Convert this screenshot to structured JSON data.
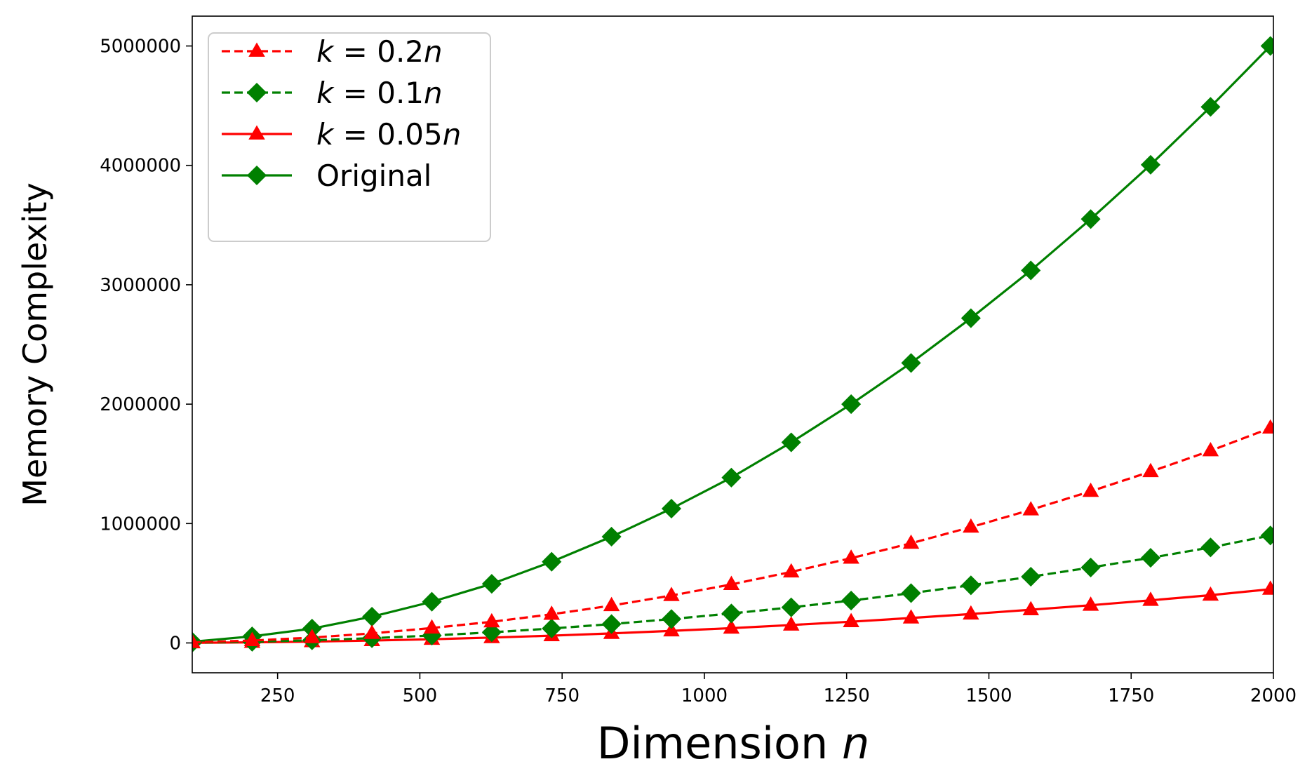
{
  "chart_data": {
    "type": "line",
    "title": "",
    "xlabel_text": "Dimension ",
    "xlabel_var": "n",
    "ylabel": "Memory Complexity",
    "xlim": [
      100,
      2000
    ],
    "ylim": [
      -250000,
      5250000
    ],
    "x_ticks": [
      250,
      500,
      750,
      1000,
      1250,
      1500,
      1750,
      2000
    ],
    "y_ticks": [
      0,
      1000000,
      2000000,
      3000000,
      4000000,
      5000000
    ],
    "x_tick_labels": [
      "250",
      "500",
      "750",
      "1000",
      "1250",
      "1500",
      "1750",
      "2000"
    ],
    "y_tick_labels": [
      "0",
      "1000000",
      "2000000",
      "3000000",
      "4000000",
      "5000000"
    ],
    "legend_position": "upper-left",
    "x": [
      100,
      205.3,
      310.5,
      415.8,
      521.1,
      626.3,
      731.6,
      836.8,
      942.1,
      1047.4,
      1152.6,
      1257.9,
      1363.2,
      1468.4,
      1573.7,
      1678.9,
      1784.2,
      1889.5,
      1994.7
    ],
    "series": [
      {
        "name": "k = 0.2n",
        "label_italic_k": "k",
        "label_mid": " = 0.2",
        "label_italic_n": "n",
        "color": "#ff0000",
        "dash": "dashed",
        "marker": "triangle",
        "values": [
          4500,
          20000,
          45000,
          80000,
          125000,
          177000,
          240000,
          313000,
          397000,
          490000,
          595000,
          710000,
          835000,
          970000,
          1115000,
          1270000,
          1435000,
          1610000,
          1800000
        ]
      },
      {
        "name": "k = 0.1n",
        "label_italic_k": "k",
        "label_mid": " = 0.1",
        "label_italic_n": "n",
        "color": "#008000",
        "dash": "dashed",
        "marker": "diamond",
        "values": [
          2000,
          10000,
          22000,
          40000,
          62000,
          89000,
          121000,
          158000,
          200000,
          247000,
          298000,
          355000,
          417000,
          483000,
          555000,
          632000,
          713000,
          800000,
          900000
        ]
      },
      {
        "name": "k = 0.05n",
        "label_italic_k": "k",
        "label_mid": " = 0.05",
        "label_italic_n": "n",
        "color": "#ff0000",
        "dash": "solid",
        "marker": "triangle",
        "values": [
          1000,
          5000,
          11000,
          20000,
          31000,
          45000,
          61000,
          80000,
          101000,
          124000,
          150000,
          178000,
          209000,
          242000,
          278000,
          316000,
          357000,
          400000,
          450000
        ]
      },
      {
        "name": "Original",
        "label_italic_k": "",
        "label_mid": "Original",
        "label_italic_n": "",
        "color": "#008000",
        "dash": "solid",
        "marker": "diamond",
        "values": [
          10000,
          55000,
          120000,
          220000,
          345000,
          495000,
          680000,
          890000,
          1125000,
          1385000,
          1680000,
          2000000,
          2345000,
          2720000,
          3120000,
          3550000,
          4005000,
          4490000,
          5000000
        ]
      }
    ]
  }
}
